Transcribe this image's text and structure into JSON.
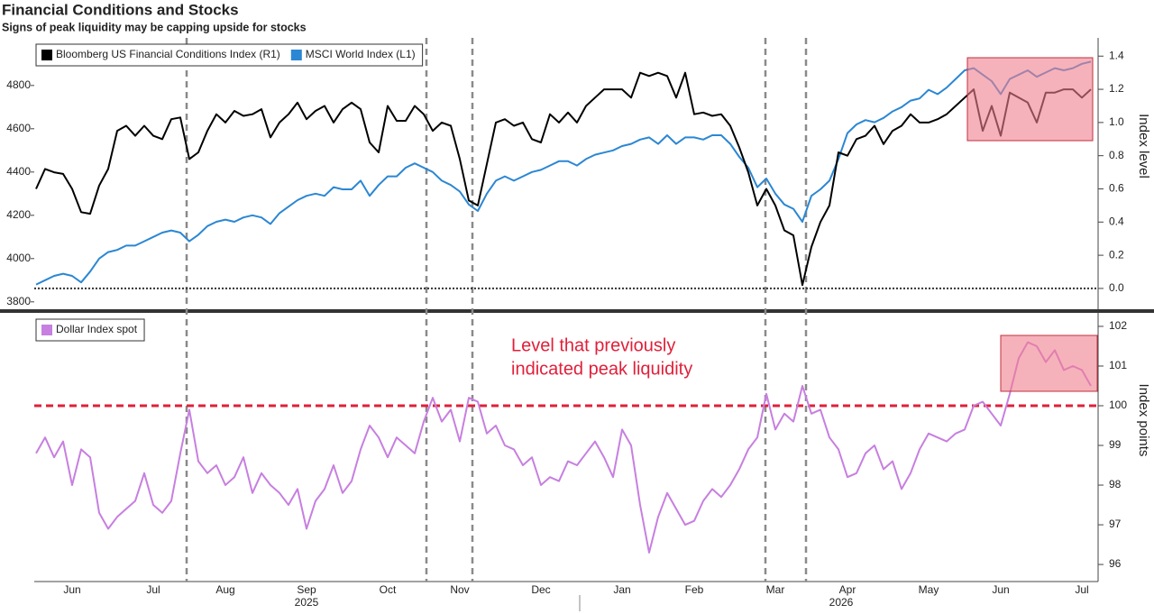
{
  "chart_data": [
    {
      "type": "line",
      "title": "Financial Conditions and Stocks",
      "subtitle": "Signs of peak liquidity may be capping upside for stocks",
      "series": [
        {
          "name": "Bloomberg US Financial Conditions Index (R1)",
          "color": "#000000",
          "axis": "y2",
          "values": [
            0.6,
            0.72,
            0.7,
            0.69,
            0.6,
            0.46,
            0.45,
            0.62,
            0.72,
            0.95,
            0.98,
            0.92,
            0.98,
            0.92,
            0.9,
            1.02,
            1.03,
            0.78,
            0.82,
            0.95,
            1.05,
            1.0,
            1.07,
            1.04,
            1.05,
            1.08,
            0.91,
            1.0,
            1.05,
            1.12,
            1.02,
            1.07,
            1.1,
            1.0,
            1.08,
            1.12,
            1.08,
            0.88,
            0.82,
            1.1,
            1.01,
            1.01,
            1.1,
            1.05,
            0.95,
            1.0,
            0.98,
            0.78,
            0.53,
            0.5,
            0.75,
            1.0,
            1.02,
            0.98,
            1.0,
            0.9,
            0.88,
            1.05,
            1.0,
            1.06,
            1.0,
            1.1,
            1.15,
            1.2,
            1.2,
            1.2,
            1.15,
            1.3,
            1.28,
            1.3,
            1.28,
            1.15,
            1.3,
            1.05,
            1.06,
            1.04,
            1.05,
            0.98,
            0.85,
            0.7,
            0.5,
            0.6,
            0.5,
            0.35,
            0.32,
            0.02,
            0.25,
            0.4,
            0.5,
            0.82,
            0.8,
            0.9,
            0.92,
            0.98,
            0.87,
            0.95,
            0.98,
            1.05,
            1.0,
            1.0,
            1.02,
            1.05,
            1.1,
            1.15,
            1.2,
            0.95,
            1.1,
            0.92,
            1.18,
            1.15,
            1.12,
            1.0,
            1.18,
            1.18,
            1.2,
            1.2,
            1.15,
            1.2
          ]
        },
        {
          "name": "MSCI World Index (L1)",
          "color": "#2b87d3",
          "values": [
            3880,
            3900,
            3920,
            3930,
            3920,
            3890,
            3940,
            4000,
            4030,
            4040,
            4060,
            4060,
            4080,
            4100,
            4120,
            4130,
            4120,
            4080,
            4110,
            4150,
            4170,
            4180,
            4170,
            4190,
            4200,
            4190,
            4160,
            4210,
            4240,
            4270,
            4290,
            4300,
            4290,
            4330,
            4320,
            4320,
            4360,
            4290,
            4340,
            4380,
            4380,
            4420,
            4440,
            4420,
            4400,
            4360,
            4340,
            4310,
            4250,
            4220,
            4300,
            4360,
            4380,
            4360,
            4380,
            4400,
            4410,
            4430,
            4450,
            4450,
            4430,
            4460,
            4480,
            4490,
            4500,
            4520,
            4530,
            4550,
            4560,
            4530,
            4570,
            4530,
            4560,
            4560,
            4550,
            4570,
            4570,
            4530,
            4470,
            4420,
            4330,
            4370,
            4300,
            4250,
            4230,
            4170,
            4290,
            4320,
            4360,
            4460,
            4580,
            4620,
            4640,
            4630,
            4650,
            4680,
            4700,
            4730,
            4740,
            4780,
            4760,
            4790,
            4830,
            4870,
            4880,
            4850,
            4820,
            4760,
            4830,
            4850,
            4870,
            4840,
            4860,
            4880,
            4870,
            4880,
            4900,
            4910
          ]
        }
      ],
      "ylim": [
        3770,
        5020
      ],
      "yticks": [
        3800,
        4000,
        4200,
        4400,
        4600,
        4800
      ],
      "y2lim": [
        -0.12,
        1.51
      ],
      "y2ticks": [
        {
          "value": 0,
          "label": "0.0"
        },
        {
          "value": 0.2,
          "label": "0.2"
        },
        {
          "value": 0.4,
          "label": "0.4"
        },
        {
          "value": 0.6,
          "label": "0.6"
        },
        {
          "value": 0.8,
          "label": "0.8"
        },
        {
          "value": 1,
          "label": "1.0"
        },
        {
          "value": 1.2,
          "label": "1.2"
        },
        {
          "value": 1.4,
          "label": "1.4"
        }
      ],
      "y2_label": "Index level",
      "zero_line": true,
      "legend": "top-left"
    },
    {
      "type": "line",
      "categories": [
        null,
        null,
        null,
        null,
        "Jun",
        null,
        null,
        null,
        null,
        null,
        null,
        null,
        null,
        "Jul",
        null,
        null,
        null,
        null,
        null,
        null,
        null,
        "Aug",
        null,
        null,
        null,
        null,
        null,
        null,
        null,
        null,
        "Sep",
        null,
        null,
        null,
        null,
        null,
        null,
        null,
        null,
        "Oct",
        null,
        null,
        null,
        null,
        null,
        null,
        null,
        "Nov",
        null,
        null,
        null,
        null,
        null,
        null,
        null,
        null,
        "Dec",
        null,
        null,
        null,
        null,
        null,
        null,
        null,
        null,
        "Jan",
        null,
        null,
        null,
        null,
        null,
        null,
        null,
        "Feb",
        null,
        null,
        null,
        null,
        null,
        null,
        null,
        null,
        "Mar",
        null,
        null,
        null,
        null,
        null,
        null,
        null,
        "Apr",
        null,
        null,
        null,
        null,
        null,
        null,
        null,
        null,
        "May",
        null,
        null,
        null,
        null,
        null,
        null,
        null,
        "Jun",
        null,
        null,
        null,
        null,
        null,
        null,
        null,
        null,
        "Jul",
        null
      ],
      "year_labels": [
        "2025",
        "2026"
      ],
      "series": [
        {
          "name": "Dollar Index spot",
          "color": "#c77fe0",
          "values": [
            98.8,
            99.2,
            98.7,
            99.1,
            98.0,
            98.9,
            98.7,
            97.3,
            96.9,
            97.2,
            97.4,
            97.6,
            98.3,
            97.5,
            97.3,
            97.6,
            98.8,
            99.9,
            98.6,
            98.3,
            98.5,
            98.0,
            98.2,
            98.7,
            97.8,
            98.3,
            98.0,
            97.8,
            97.5,
            97.9,
            96.9,
            97.6,
            97.9,
            98.5,
            97.8,
            98.1,
            98.9,
            99.5,
            99.2,
            98.7,
            99.2,
            99.0,
            98.8,
            99.6,
            100.2,
            99.6,
            99.9,
            99.1,
            100.2,
            100.1,
            99.3,
            99.5,
            99.0,
            98.9,
            98.5,
            98.7,
            98.0,
            98.2,
            98.1,
            98.6,
            98.5,
            98.8,
            99.1,
            98.7,
            98.2,
            99.4,
            99.0,
            97.5,
            96.3,
            97.2,
            97.8,
            97.4,
            97.0,
            97.1,
            97.6,
            97.9,
            97.7,
            98.0,
            98.4,
            98.9,
            99.2,
            100.3,
            99.4,
            99.8,
            99.6,
            100.5,
            99.8,
            99.9,
            99.2,
            98.9,
            98.2,
            98.3,
            98.8,
            99.0,
            98.4,
            98.6,
            97.9,
            98.3,
            98.9,
            99.3,
            99.2,
            99.1,
            99.3,
            99.4,
            100.0,
            100.1,
            99.8,
            99.5,
            100.3,
            101.2,
            101.6,
            101.5,
            101.1,
            101.4,
            100.9,
            101.0,
            100.9,
            100.5
          ]
        }
      ],
      "ylim": [
        95.57,
        102.34
      ],
      "yticks": [
        96,
        97,
        98,
        99,
        100,
        101,
        102
      ],
      "yaxis_position": "right",
      "y_label": "Index points",
      "reference_line": {
        "value": 100,
        "color": "#e0203a",
        "label": [
          "Level that previously",
          "indicated peak liquidity"
        ]
      },
      "legend": "top-left"
    }
  ]
}
